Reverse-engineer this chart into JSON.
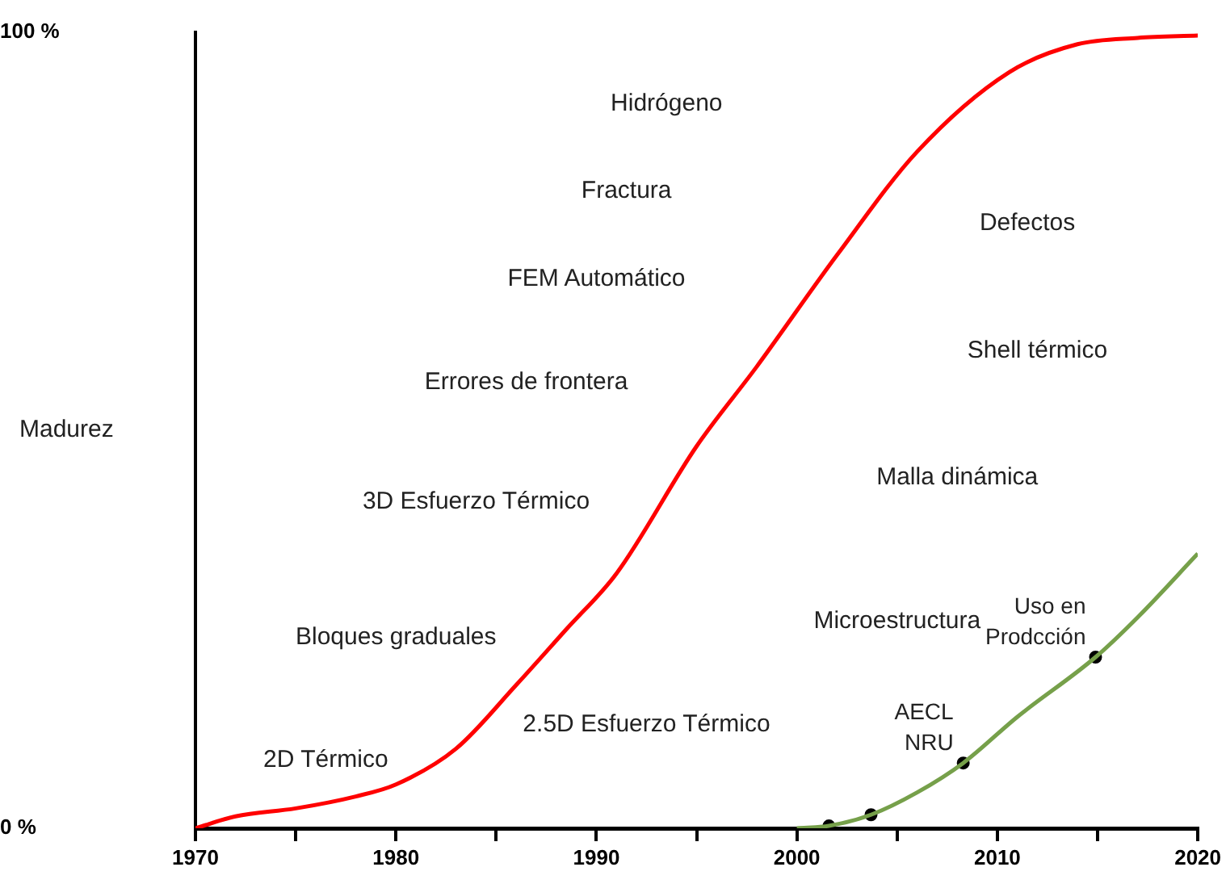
{
  "chart_data": {
    "type": "line",
    "ylabel": "Madurez",
    "x": [
      1970,
      1972,
      1975,
      1978,
      1980,
      1983,
      1986,
      1988.5,
      1991,
      1995,
      1998,
      2002,
      2006,
      2010.6,
      2014,
      2017,
      2020
    ],
    "series": [
      {
        "color": "#ff0000",
        "values": [
          0,
          1.5,
          2.5,
          4,
          5.5,
          10,
          18,
          25,
          32,
          48,
          58,
          72,
          85,
          95,
          98.5,
          99.3,
          99.6
        ]
      },
      {
        "color": "#76a04a",
        "x": [
          2000,
          2001.6,
          2003.7,
          2006,
          2008.3,
          2011,
          2014.9,
          2017,
          2020
        ],
        "values": [
          0,
          0.3,
          1.7,
          4.5,
          8.2,
          14,
          21.5,
          26.5,
          34.5
        ]
      },
      {
        "type": "scatter",
        "color": "#000000",
        "x": [
          2001.6,
          2003.7,
          2008.3,
          2014.9
        ],
        "values": [
          0.3,
          1.7,
          8.2,
          21.5
        ],
        "marker": "circle"
      }
    ],
    "xlim": [
      1970,
      2020
    ],
    "xticks": [
      1970,
      {
        "value": 1975,
        "label": null
      },
      1980,
      {
        "value": 1985,
        "label": null
      },
      1990,
      {
        "value": 1995,
        "label": null
      },
      2000,
      {
        "value": 2005,
        "label": null
      },
      2010,
      {
        "value": 2015,
        "label": null
      },
      2020
    ],
    "ylim": [
      0,
      100
    ],
    "yticks": [
      {
        "value": 0,
        "label": "0 %"
      },
      {
        "value": 100,
        "label": "100 %"
      }
    ],
    "grid": false,
    "legend": false,
    "marker": "none",
    "line_style": "solid",
    "annotations": [
      "Hidrógeno",
      "Fractura",
      "Defectos",
      "FEM Automático",
      "Shell térmico",
      "Errores de frontera",
      "Malla dinámica",
      "3D Esfuerzo Térmico",
      "Microestructura",
      "Bloques graduales",
      "2.5D Esfuerzo Térmico",
      "2D Térmico",
      {
        "text": "AECL\nNRU",
        "x": 2008.3,
        "y": 8.2
      },
      {
        "text": "Uso en\nProdcción",
        "x": 2014.9,
        "y": 21.5
      }
    ]
  }
}
